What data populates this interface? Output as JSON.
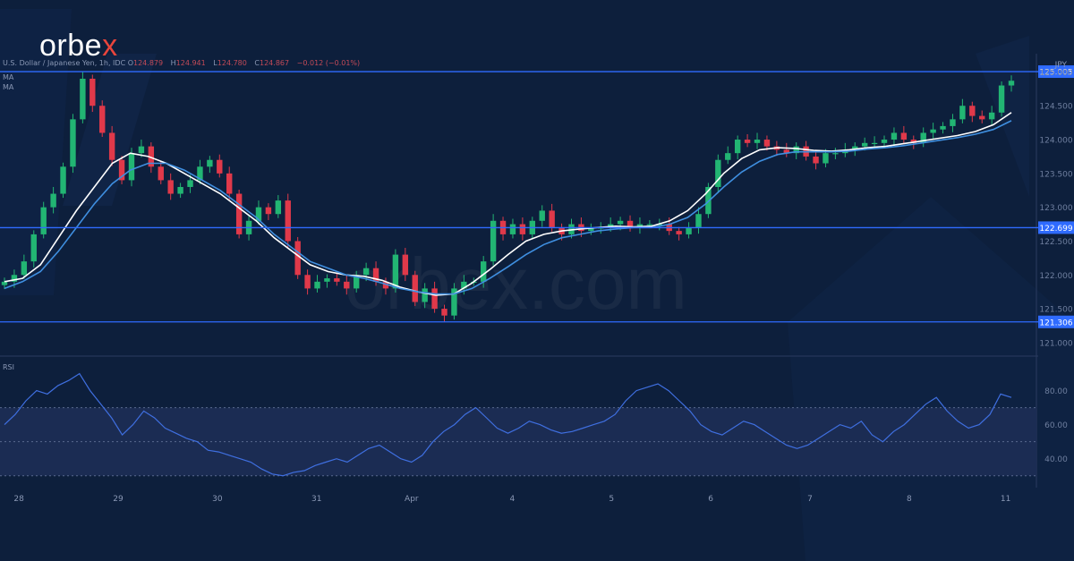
{
  "brand": {
    "logo_text_main": "orbe",
    "logo_text_accent": "x",
    "watermark": "orbex.com"
  },
  "colors": {
    "background": "#0d1f3c",
    "bull": "#22b573",
    "bear": "#e0394a",
    "ma_fast": "#ffffff",
    "ma_slow": "#3f8fe0",
    "level_line": "#2f6bff",
    "rsi_line": "#3f6fe0",
    "rsi_band": "#1d2d55"
  },
  "header": {
    "symbol": "U.S. Dollar / Japanese Yen, 1h, IDC",
    "o_label": "O",
    "o_value": "124.879",
    "h_label": "H",
    "h_value": "124.941",
    "l_label": "L",
    "l_value": "124.780",
    "c_label": "C",
    "c_value": "124.867",
    "change": "−0.012 (−0.01%)",
    "ma1_label": "MA",
    "ma2_label": "MA",
    "unit": "JPY",
    "rsi_label": "RSI"
  },
  "chart_data": [
    {
      "type": "candlestick",
      "title": "U.S. Dollar / Japanese Yen, 1h, IDC",
      "unit": "JPY",
      "ylim": [
        120.84,
        125.27
      ],
      "y_ticks": [
        "121.000",
        "121.500",
        "122.000",
        "122.500",
        "123.000",
        "123.500",
        "124.000",
        "124.500",
        "125.000"
      ],
      "x_ticks": [
        {
          "label": "28",
          "t": 1.0
        },
        {
          "label": "29",
          "t": 7.9
        },
        {
          "label": "30",
          "t": 14.8
        },
        {
          "label": "31",
          "t": 21.7
        },
        {
          "label": "Apr",
          "t": 28.3
        },
        {
          "label": "4",
          "t": 35.3
        },
        {
          "label": "5",
          "t": 42.2
        },
        {
          "label": "6",
          "t": 49.1
        },
        {
          "label": "7",
          "t": 56.0
        },
        {
          "label": "8",
          "t": 62.9
        },
        {
          "label": "11",
          "t": 69.6
        }
      ],
      "levels": [
        {
          "label": "125.005",
          "value": 125.005
        },
        {
          "label": "122.699",
          "value": 122.699
        },
        {
          "label": "121.306",
          "value": 121.306
        }
      ],
      "price_series": [
        121.9,
        122.0,
        122.2,
        122.6,
        123.0,
        123.2,
        123.6,
        124.3,
        124.9,
        124.5,
        124.1,
        123.7,
        123.4,
        123.8,
        123.9,
        123.6,
        123.4,
        123.2,
        123.3,
        123.4,
        123.6,
        123.7,
        123.5,
        123.2,
        122.6,
        122.8,
        123.0,
        122.9,
        123.1,
        122.5,
        122.0,
        121.8,
        121.9,
        121.95,
        121.9,
        121.8,
        122.0,
        122.1,
        121.9,
        121.8,
        122.3,
        122.0,
        121.6,
        121.8,
        121.5,
        121.4,
        121.8,
        121.9,
        121.9,
        122.2,
        122.8,
        122.6,
        122.75,
        122.6,
        122.8,
        122.95,
        122.7,
        122.6,
        122.75,
        122.65,
        122.7,
        122.7,
        122.75,
        122.8,
        122.7,
        122.75,
        122.75,
        122.75,
        122.65,
        122.6,
        122.7,
        122.9,
        123.3,
        123.7,
        123.8,
        124.0,
        123.95,
        124.0,
        123.9,
        123.85,
        123.8,
        123.9,
        123.75,
        123.65,
        123.8,
        123.8,
        123.85,
        123.9,
        123.95,
        123.95,
        124.0,
        124.1,
        124.0,
        123.95,
        124.1,
        124.15,
        124.2,
        124.3,
        124.5,
        124.35,
        124.3,
        124.4,
        124.8,
        124.87
      ],
      "series": [
        {
          "name": "MA",
          "role": "fast",
          "values": [
            121.9,
            121.95,
            122.15,
            122.55,
            122.95,
            123.3,
            123.65,
            123.8,
            123.75,
            123.65,
            123.5,
            123.35,
            123.2,
            123.0,
            122.8,
            122.55,
            122.35,
            122.15,
            122.05,
            122.0,
            121.98,
            121.92,
            121.82,
            121.75,
            121.7,
            121.72,
            121.88,
            122.08,
            122.3,
            122.5,
            122.6,
            122.65,
            122.68,
            122.7,
            122.72,
            122.71,
            122.72,
            122.8,
            122.95,
            123.2,
            123.5,
            123.72,
            123.85,
            123.88,
            123.87,
            123.84,
            123.83,
            123.85,
            123.88,
            123.9,
            123.94,
            123.98,
            124.02,
            124.06,
            124.12,
            124.22,
            124.4
          ]
        },
        {
          "name": "MA",
          "role": "slow",
          "values": [
            121.8,
            121.9,
            122.05,
            122.35,
            122.7,
            123.05,
            123.35,
            123.55,
            123.65,
            123.65,
            123.55,
            123.4,
            123.25,
            123.05,
            122.85,
            122.6,
            122.4,
            122.2,
            122.1,
            122.0,
            121.95,
            121.88,
            121.8,
            121.75,
            121.72,
            121.72,
            121.8,
            121.95,
            122.12,
            122.3,
            122.45,
            122.55,
            122.6,
            122.65,
            122.68,
            122.7,
            122.7,
            122.75,
            122.85,
            123.05,
            123.3,
            123.52,
            123.68,
            123.78,
            123.82,
            123.82,
            123.82,
            123.83,
            123.86,
            123.88,
            123.91,
            123.95,
            123.99,
            124.03,
            124.08,
            124.15,
            124.28
          ]
        }
      ]
    },
    {
      "type": "line",
      "title": "RSI",
      "ylim": [
        23,
        94
      ],
      "y_ticks": [
        "40.00",
        "60.00",
        "80.00"
      ],
      "bands": {
        "upper": 70,
        "mid": 50,
        "lower": 30
      },
      "series": [
        {
          "name": "RSI",
          "values": [
            60,
            66,
            74,
            80,
            78,
            83,
            86,
            90,
            80,
            72,
            64,
            54,
            60,
            68,
            64,
            58,
            55,
            52,
            50,
            45,
            44,
            42,
            40,
            38,
            34,
            31,
            30,
            32,
            33,
            36,
            38,
            40,
            38,
            42,
            46,
            48,
            44,
            40,
            38,
            42,
            50,
            56,
            60,
            66,
            70,
            64,
            58,
            55,
            58,
            62,
            60,
            57,
            55,
            56,
            58,
            60,
            62,
            66,
            74,
            80,
            82,
            84,
            80,
            74,
            68,
            60,
            56,
            54,
            58,
            62,
            60,
            56,
            52,
            48,
            46,
            48,
            52,
            56,
            60,
            58,
            62,
            54,
            50,
            56,
            60,
            66,
            72,
            76,
            68,
            62,
            58,
            60,
            66,
            78,
            76
          ]
        }
      ]
    }
  ]
}
